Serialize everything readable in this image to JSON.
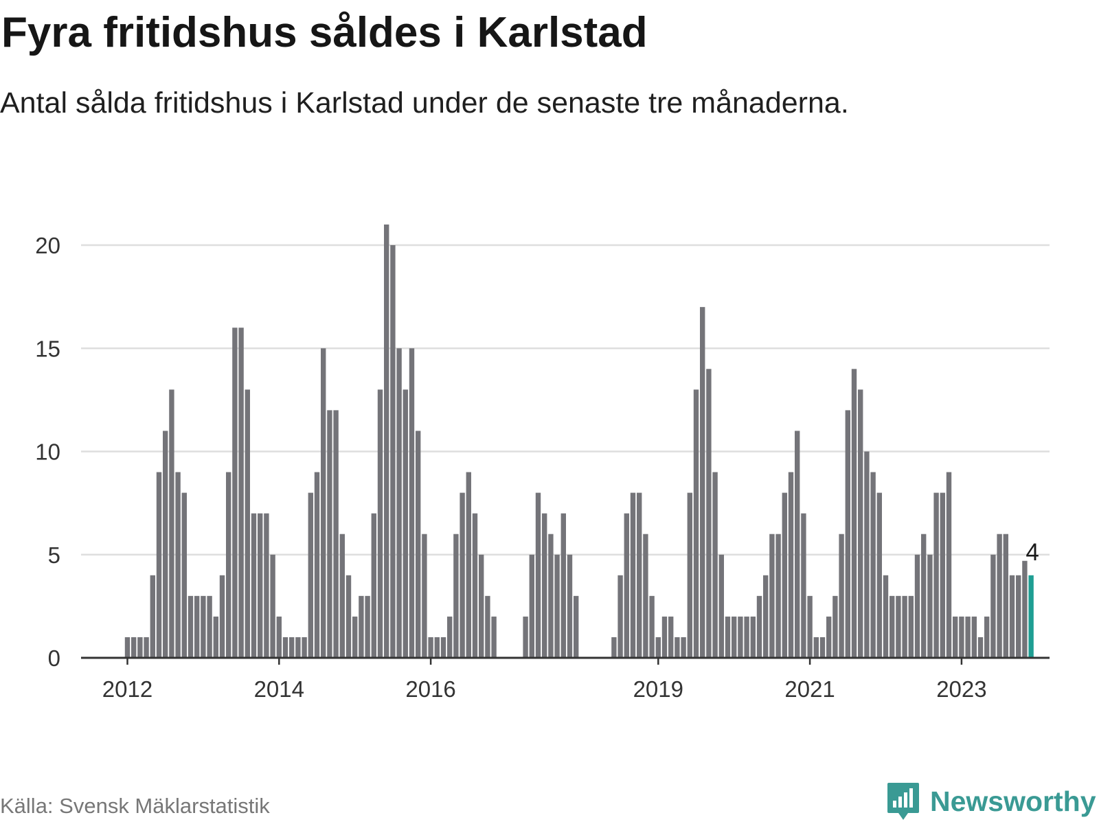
{
  "title": "Fyra fritidshus såldes i Karlstad",
  "subtitle": "Antal sålda fritidshus i Karlstad under de senaste tre månaderna.",
  "source": "Källa: Svensk Mäklarstatistik",
  "brand": {
    "name": "Newsworthy",
    "icon": "bar-chart-bubble-icon",
    "color": "#3a9a94"
  },
  "colors": {
    "bar": "#747479",
    "highlight": "#1f9e93",
    "grid": "#dedede",
    "axis": "#333333"
  },
  "chart_data": {
    "type": "bar",
    "title": "Fyra fritidshus såldes i Karlstad",
    "xlabel": "",
    "ylabel": "",
    "ylim": [
      0,
      22
    ],
    "yticks": [
      0,
      5,
      10,
      15,
      20
    ],
    "xtick_labels": [
      {
        "label": "2012",
        "index": 0
      },
      {
        "label": "2014",
        "index": 24
      },
      {
        "label": "2016",
        "index": 48
      },
      {
        "label": "2019",
        "index": 84
      },
      {
        "label": "2021",
        "index": 108
      },
      {
        "label": "2023",
        "index": 132
      }
    ],
    "first_index": -8,
    "values": [
      null,
      null,
      null,
      null,
      null,
      null,
      null,
      null,
      1,
      1,
      1,
      1,
      4,
      9,
      11,
      13,
      9,
      8,
      3,
      3,
      3,
      3,
      2,
      4,
      9,
      16,
      16,
      13,
      7,
      7,
      7,
      5,
      2,
      1,
      1,
      1,
      1,
      8,
      9,
      15,
      12,
      12,
      6,
      4,
      2,
      3,
      3,
      7,
      13,
      21,
      20,
      15,
      13,
      15,
      11,
      6,
      1,
      1,
      1,
      2,
      6,
      8,
      9,
      7,
      5,
      3,
      2,
      null,
      null,
      null,
      null,
      2,
      5,
      8,
      7,
      6,
      5,
      7,
      5,
      3,
      null,
      null,
      null,
      null,
      null,
      1,
      4,
      7,
      8,
      8,
      6,
      3,
      1,
      2,
      2,
      1,
      1,
      8,
      13,
      17,
      14,
      9,
      5,
      2,
      2,
      2,
      2,
      2,
      3,
      4,
      6,
      6,
      8,
      9,
      11,
      7,
      3,
      1,
      1,
      2,
      3,
      6,
      12,
      14,
      13,
      10,
      9,
      8,
      4,
      3,
      3,
      3,
      3,
      5,
      6,
      5,
      8,
      8,
      9,
      2,
      2,
      2,
      2,
      1,
      2,
      5,
      6,
      6,
      4,
      4,
      4.7,
      4
    ],
    "highlight_last": true,
    "annotation": {
      "text": "4",
      "value": 4
    },
    "grid": true,
    "legend": "none"
  }
}
